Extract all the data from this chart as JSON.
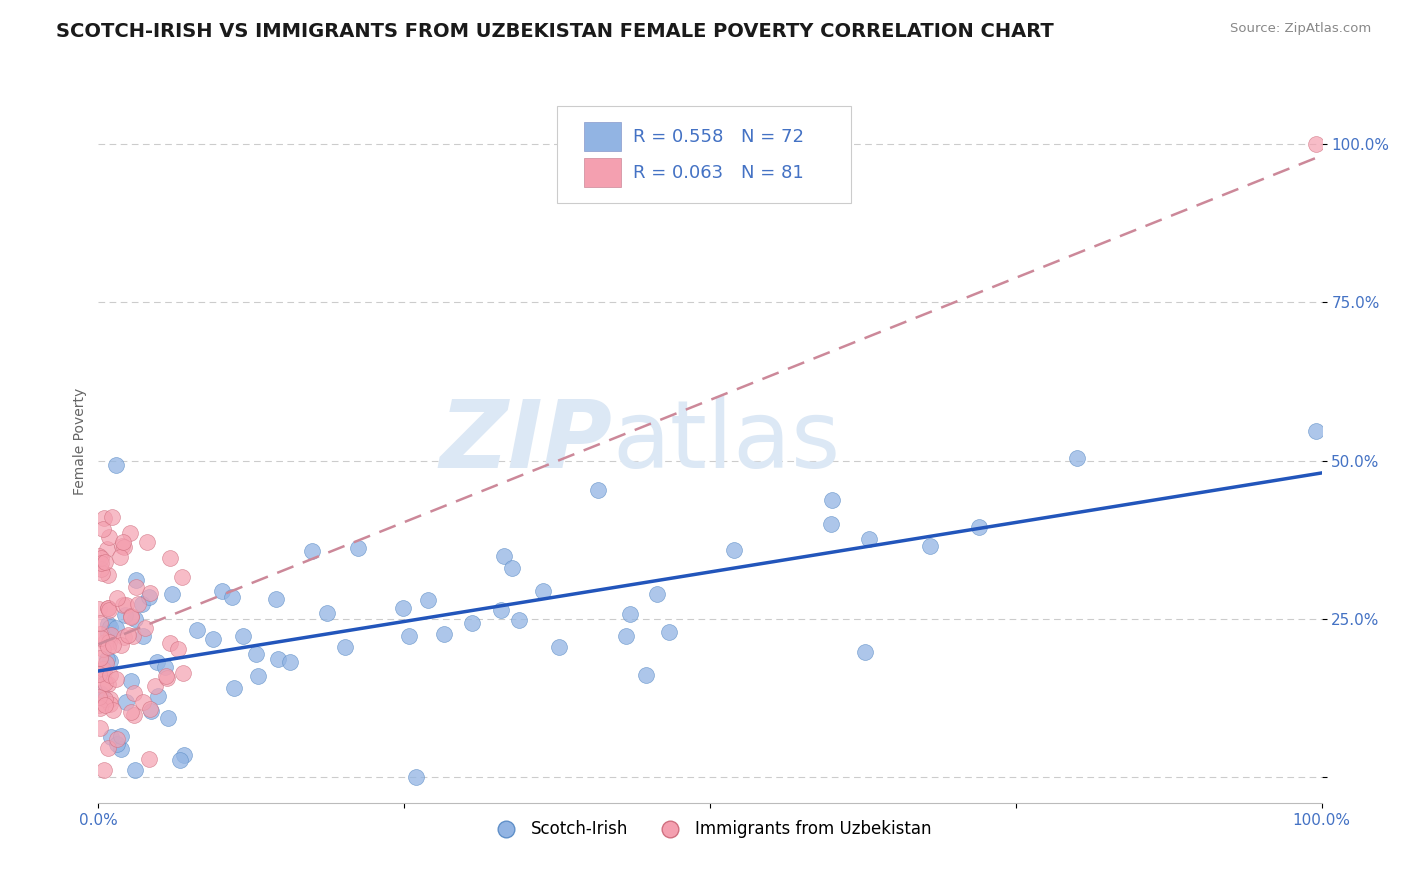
{
  "title": "SCOTCH-IRISH VS IMMIGRANTS FROM UZBEKISTAN FEMALE POVERTY CORRELATION CHART",
  "source": "Source: ZipAtlas.com",
  "ylabel": "Female Poverty",
  "xlim": [
    0,
    1
  ],
  "ylim": [
    -0.04,
    1.1
  ],
  "series1_name": "Scotch-Irish",
  "series1_color": "#92b4e3",
  "series1_edge": "#6090c8",
  "series1_R": 0.558,
  "series1_N": 72,
  "series2_name": "Immigrants from Uzbekistan",
  "series2_color": "#f4a0b0",
  "series2_edge": "#d07080",
  "series2_R": 0.063,
  "series2_N": 81,
  "trend1_color": "#2255bb",
  "trend2_color": "#cc8899",
  "legend_text_color": "#4472c4",
  "background_color": "#ffffff",
  "grid_color": "#cccccc",
  "watermark_zip": "ZIP",
  "watermark_atlas": "atlas",
  "watermark_color": "#dce8f5",
  "title_fontsize": 14,
  "axis_label_fontsize": 10,
  "tick_fontsize": 11,
  "seed1": 42,
  "seed2": 99
}
